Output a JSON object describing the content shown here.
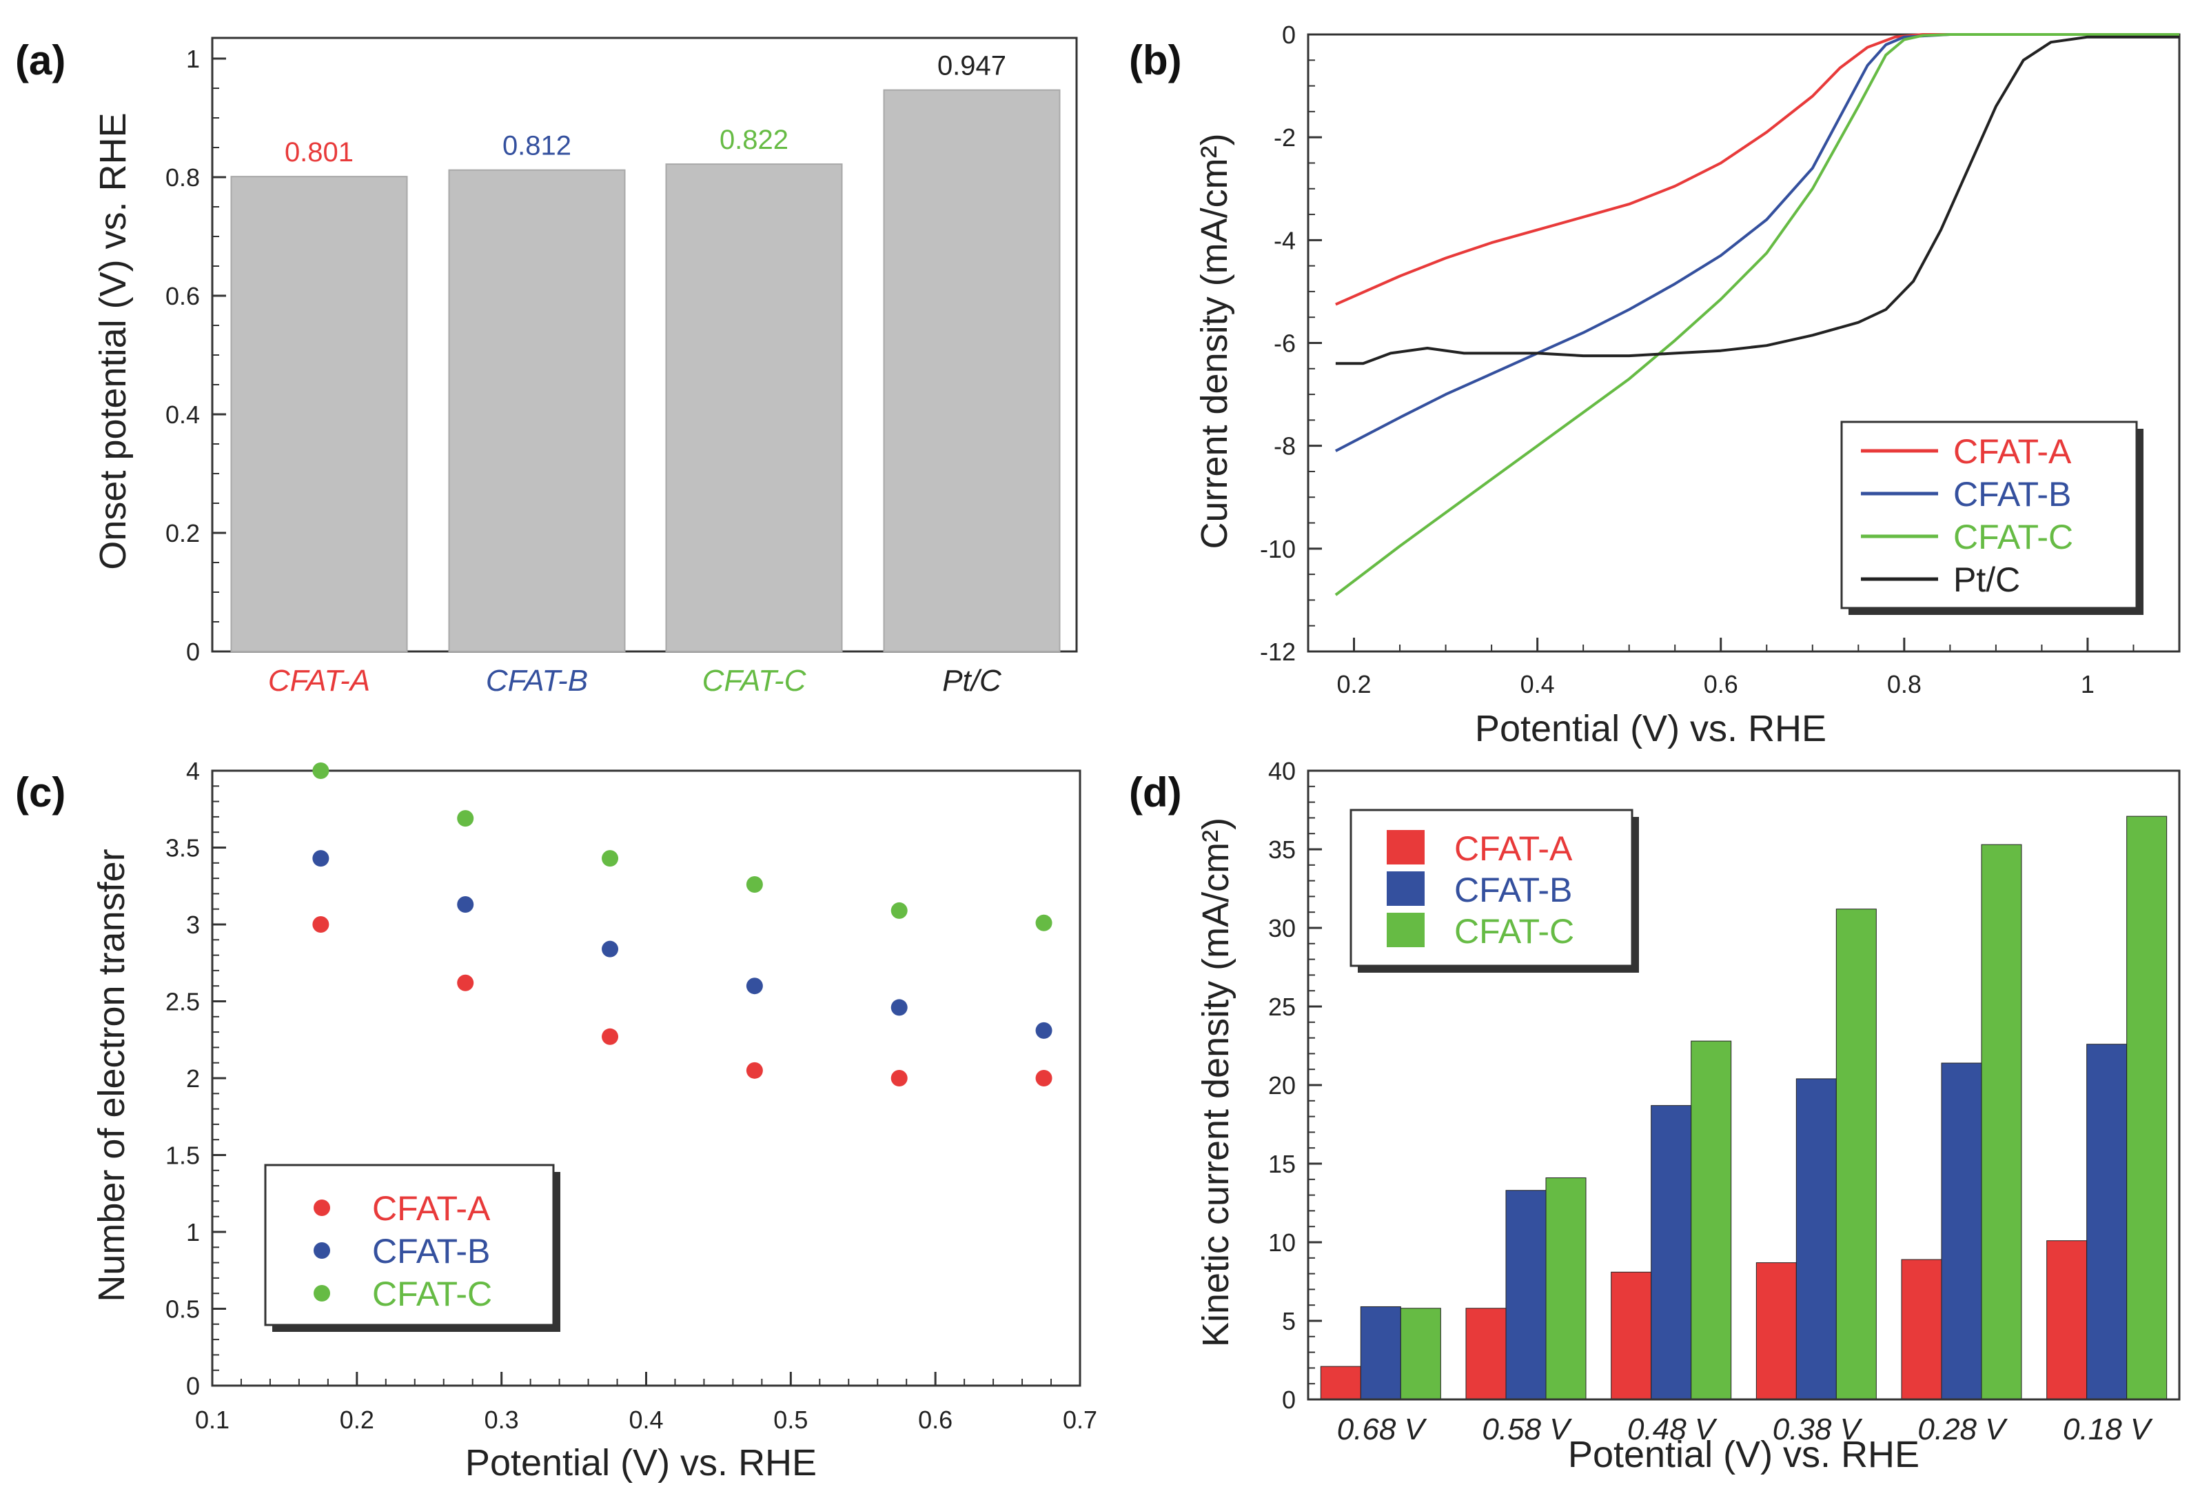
{
  "colors": {
    "CFAT-A": "#e83a3a",
    "CFAT-B": "#34509e",
    "CFAT-C": "#66bb44",
    "Pt/C": "#222222",
    "bar_gray": "#c0c0c0"
  },
  "chart_data": [
    {
      "id": "a",
      "panel_label": "(a)",
      "type": "bar",
      "title": "",
      "xlabel": "",
      "ylabel": "Onset potential (V) vs. RHE",
      "ylim": [
        0,
        1
      ],
      "yticks": [
        "0",
        "0.2",
        "0.4",
        "0.6",
        "0.8",
        "1"
      ],
      "categories": [
        "CFAT-A",
        "CFAT-B",
        "CFAT-C",
        "Pt/C"
      ],
      "values": [
        0.801,
        0.812,
        0.822,
        0.947
      ],
      "value_labels": [
        "0.801",
        "0.812",
        "0.822",
        "0.947"
      ],
      "category_colors": [
        "#e83a3a",
        "#34509e",
        "#66bb44",
        "#222222"
      ]
    },
    {
      "id": "b",
      "panel_label": "(b)",
      "type": "line",
      "xlabel": "Potential  (V) vs. RHE",
      "ylabel": "Current density  (mA/cm²)",
      "xlim": [
        0.15,
        1.1
      ],
      "ylim": [
        -12,
        0
      ],
      "xticks": [
        "0.2",
        "0.4",
        "0.6",
        "0.8",
        "1"
      ],
      "yticks": [
        "0",
        "-2",
        "-4",
        "-6",
        "-8",
        "-10",
        "-12"
      ],
      "legend_position": "bottom-right",
      "series": [
        {
          "name": "CFAT-A",
          "color": "#e83a3a",
          "x": [
            0.18,
            0.25,
            0.3,
            0.35,
            0.4,
            0.45,
            0.5,
            0.55,
            0.6,
            0.65,
            0.7,
            0.73,
            0.76,
            0.79,
            0.82,
            0.9,
            1.0,
            1.1
          ],
          "y": [
            -5.25,
            -4.7,
            -4.35,
            -4.05,
            -3.8,
            -3.55,
            -3.3,
            -2.95,
            -2.5,
            -1.9,
            -1.2,
            -0.65,
            -0.25,
            -0.05,
            0.0,
            0.0,
            0.0,
            0.0
          ]
        },
        {
          "name": "CFAT-B",
          "color": "#34509e",
          "x": [
            0.18,
            0.25,
            0.3,
            0.35,
            0.4,
            0.45,
            0.5,
            0.55,
            0.6,
            0.65,
            0.7,
            0.73,
            0.76,
            0.78,
            0.8,
            0.85,
            0.9,
            1.0,
            1.1
          ],
          "y": [
            -8.1,
            -7.45,
            -7.0,
            -6.6,
            -6.2,
            -5.8,
            -5.35,
            -4.85,
            -4.3,
            -3.6,
            -2.6,
            -1.6,
            -0.6,
            -0.2,
            -0.05,
            0.0,
            0.0,
            0.0,
            0.0
          ]
        },
        {
          "name": "CFAT-C",
          "color": "#66bb44",
          "x": [
            0.18,
            0.25,
            0.3,
            0.35,
            0.4,
            0.45,
            0.5,
            0.55,
            0.6,
            0.65,
            0.7,
            0.75,
            0.78,
            0.8,
            0.82,
            0.85,
            0.9,
            1.0,
            1.1
          ],
          "y": [
            -10.9,
            -9.95,
            -9.3,
            -8.65,
            -8.0,
            -7.35,
            -6.7,
            -5.95,
            -5.15,
            -4.25,
            -3.0,
            -1.4,
            -0.4,
            -0.1,
            -0.02,
            0.0,
            0.0,
            0.0,
            0.0
          ]
        },
        {
          "name": "Pt/C",
          "color": "#222222",
          "x": [
            0.18,
            0.21,
            0.24,
            0.28,
            0.32,
            0.36,
            0.4,
            0.45,
            0.5,
            0.55,
            0.6,
            0.65,
            0.7,
            0.75,
            0.78,
            0.81,
            0.84,
            0.87,
            0.9,
            0.93,
            0.96,
            1.0,
            1.05,
            1.1
          ],
          "y": [
            -6.4,
            -6.4,
            -6.2,
            -6.1,
            -6.2,
            -6.2,
            -6.2,
            -6.25,
            -6.25,
            -6.2,
            -6.15,
            -6.05,
            -5.85,
            -5.6,
            -5.35,
            -4.8,
            -3.8,
            -2.6,
            -1.4,
            -0.5,
            -0.15,
            -0.05,
            -0.05,
            -0.05
          ]
        }
      ]
    },
    {
      "id": "c",
      "panel_label": "(c)",
      "type": "scatter",
      "xlabel": "Potential  (V) vs. RHE",
      "ylabel": "Number of electron transfer",
      "xlim": [
        0.1,
        0.7
      ],
      "ylim": [
        0,
        4
      ],
      "xticks": [
        "0.1",
        "0.2",
        "0.3",
        "0.4",
        "0.5",
        "0.6",
        "0.7"
      ],
      "yticks": [
        "0",
        "0.5",
        "1",
        "1.5",
        "2",
        "2.5",
        "3",
        "3.5",
        "4"
      ],
      "legend_position": "bottom-left",
      "series": [
        {
          "name": "CFAT-A",
          "color": "#e83a3a",
          "x": [
            0.175,
            0.275,
            0.375,
            0.475,
            0.575,
            0.675
          ],
          "y": [
            3.0,
            2.62,
            2.27,
            2.05,
            2.0,
            2.0
          ]
        },
        {
          "name": "CFAT-B",
          "color": "#34509e",
          "x": [
            0.175,
            0.275,
            0.375,
            0.475,
            0.575,
            0.675
          ],
          "y": [
            3.43,
            3.13,
            2.84,
            2.6,
            2.46,
            2.31
          ]
        },
        {
          "name": "CFAT-C",
          "color": "#66bb44",
          "x": [
            0.175,
            0.275,
            0.375,
            0.475,
            0.575,
            0.675
          ],
          "y": [
            4.0,
            3.69,
            3.43,
            3.26,
            3.09,
            3.01
          ]
        }
      ]
    },
    {
      "id": "d",
      "panel_label": "(d)",
      "type": "bar",
      "xlabel": "Potential  (V) vs. RHE",
      "ylabel": "Kinetic current density (mA/cm²)",
      "ylim": [
        0,
        40
      ],
      "yticks": [
        "0",
        "5",
        "10",
        "15",
        "20",
        "25",
        "30",
        "35",
        "40"
      ],
      "legend_position": "top-left",
      "categories": [
        "0.68 V",
        "0.58 V",
        "0.48 V",
        "0.38 V",
        "0.28 V",
        "0.18 V"
      ],
      "series": [
        {
          "name": "CFAT-A",
          "color": "#e83a3a",
          "values": [
            2.1,
            5.8,
            8.1,
            8.7,
            8.9,
            10.1
          ]
        },
        {
          "name": "CFAT-B",
          "color": "#34509e",
          "values": [
            5.9,
            13.3,
            18.7,
            20.4,
            21.4,
            22.6
          ]
        },
        {
          "name": "CFAT-C",
          "color": "#66bb44",
          "values": [
            5.8,
            14.1,
            22.8,
            31.2,
            35.3,
            37.1
          ]
        }
      ]
    }
  ]
}
